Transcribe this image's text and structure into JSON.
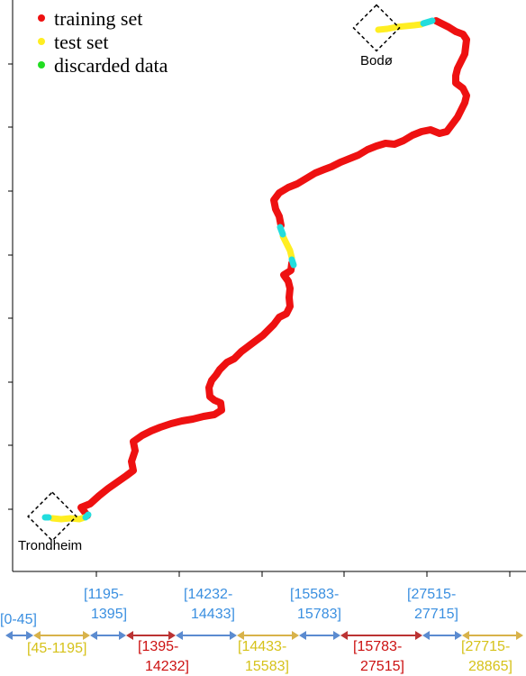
{
  "legend": {
    "items": [
      {
        "label": "training set",
        "color": "#ee1111"
      },
      {
        "label": "test set",
        "color": "#ffee22"
      },
      {
        "label": "discarded data",
        "color": "#22dd22"
      }
    ]
  },
  "cities": {
    "start": {
      "label": "Trondheim"
    },
    "end": {
      "label": "Bodø"
    }
  },
  "segments": [
    {
      "label_line1": "[0-45]",
      "label_line2": "",
      "type": "discarded",
      "color": "#5b8bd0",
      "text_color": "#3a8fe0"
    },
    {
      "label_line1": "[45-1195]",
      "label_line2": "",
      "type": "test",
      "color": "#d8b24a",
      "text_color": "#d6c21a"
    },
    {
      "label_line1": "[1195-",
      "label_line2": "1395]",
      "type": "discarded",
      "color": "#5b8bd0",
      "text_color": "#3a8fe0"
    },
    {
      "label_line1": "[1395-",
      "label_line2": "14232]",
      "type": "training",
      "color": "#bb3333",
      "text_color": "#cc1111"
    },
    {
      "label_line1": "[14232-",
      "label_line2": "14433]",
      "type": "discarded",
      "color": "#5b8bd0",
      "text_color": "#3a8fe0"
    },
    {
      "label_line1": "[14433-",
      "label_line2": "15583]",
      "type": "test",
      "color": "#d8b24a",
      "text_color": "#d6c21a"
    },
    {
      "label_line1": "[15583-",
      "label_line2": "15783]",
      "type": "discarded",
      "color": "#5b8bd0",
      "text_color": "#3a8fe0"
    },
    {
      "label_line1": "[15783-",
      "label_line2": "27515]",
      "type": "training",
      "color": "#bb3333",
      "text_color": "#cc1111"
    },
    {
      "label_line1": "[27515-",
      "label_line2": "27715]",
      "type": "discarded",
      "color": "#5b8bd0",
      "text_color": "#3a8fe0"
    },
    {
      "label_line1": "[27715-",
      "label_line2": "28865]",
      "type": "test",
      "color": "#d8b24a",
      "text_color": "#d6c21a"
    }
  ],
  "colors": {
    "training": "#ee1111",
    "test": "#ffee22",
    "discarded": "#22dddd"
  }
}
